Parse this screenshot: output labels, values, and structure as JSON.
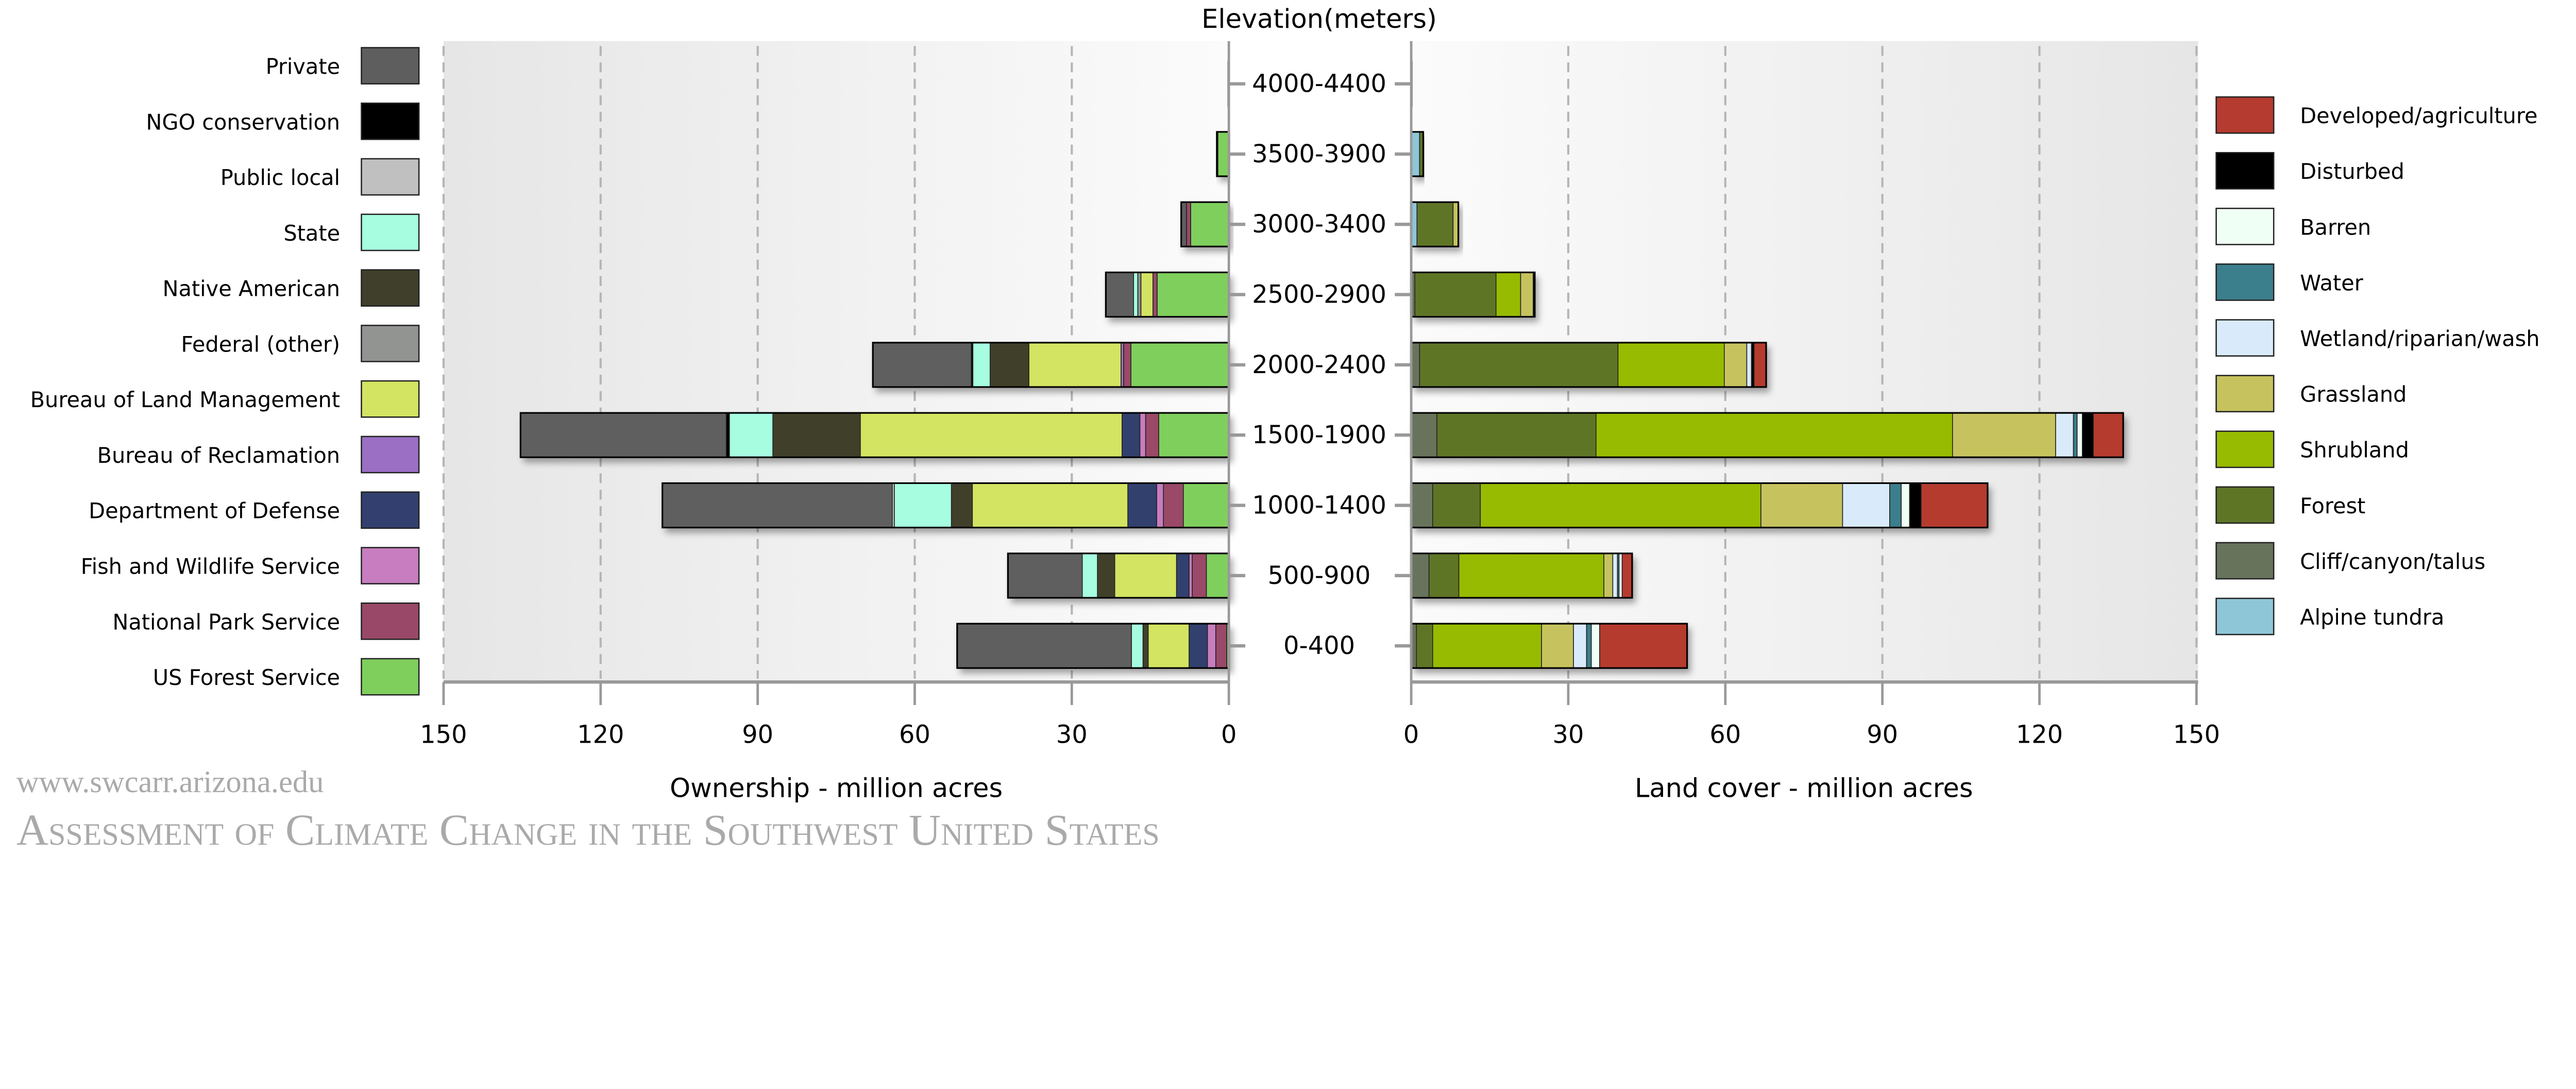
{
  "chart_data": [
    {
      "type": "bar",
      "orientation": "horizontal-stacked",
      "direction": "leftward",
      "xlabel": "Ownership - million acres",
      "xlim": [
        0,
        150
      ],
      "xticks": [
        "150",
        "120",
        "90",
        "60",
        "30",
        "0"
      ],
      "grid": true,
      "legend_placement": "left",
      "categories": [
        "4000-4400",
        "3500-3900",
        "3000-3400",
        "2500-2900",
        "2000-2400",
        "1500-1900",
        "1000-1400",
        "500-900",
        "0-400"
      ],
      "series": [
        {
          "name": "US Forest Service",
          "color": "#7fcf5d",
          "values": [
            0.1,
            2.1,
            7.3,
            13.7,
            18.7,
            13.4,
            8.7,
            4.3,
            0.4
          ]
        },
        {
          "name": "National Park Service",
          "color": "#9a4868",
          "values": [
            0,
            0.1,
            0.8,
            0.8,
            1.4,
            2.5,
            3.8,
            2.7,
            2.1
          ]
        },
        {
          "name": "Fish and Wildlife Service",
          "color": "#c77dbf",
          "values": [
            0,
            0,
            0,
            0,
            0,
            1.1,
            1.3,
            0.6,
            1.6
          ]
        },
        {
          "name": "Department of Defense",
          "color": "#333f6e",
          "values": [
            0,
            0,
            0,
            0,
            0,
            3.4,
            5.5,
            2.4,
            3.5
          ]
        },
        {
          "name": "Bureau of Reclamation",
          "color": "#9b6fc4",
          "values": [
            0,
            0,
            0,
            0,
            0.5,
            0,
            0,
            0,
            0
          ]
        },
        {
          "name": "Bureau of Land Management",
          "color": "#d3e462",
          "values": [
            0,
            0,
            0,
            2.3,
            17.6,
            50.0,
            29.7,
            11.8,
            7.8
          ]
        },
        {
          "name": "Federal (other)",
          "color": "#929492",
          "values": [
            0,
            0,
            0,
            0.6,
            0,
            0,
            0,
            0,
            0
          ]
        },
        {
          "name": "Native American",
          "color": "#3f3f2b",
          "values": [
            0,
            0,
            0,
            0,
            7.4,
            16.7,
            4.0,
            3.3,
            1.0
          ]
        },
        {
          "name": "State",
          "color": "#a6fde0",
          "values": [
            0,
            0,
            0,
            0.8,
            3.3,
            8.3,
            10.9,
            2.9,
            2.2
          ]
        },
        {
          "name": "Public local",
          "color": "#c0c0c0",
          "values": [
            0,
            0,
            0,
            0,
            0,
            0,
            0.4,
            0,
            0
          ]
        },
        {
          "name": "NGO conservation",
          "color": "#000000",
          "values": [
            0,
            0,
            0,
            0,
            0.3,
            0.6,
            0,
            0,
            0
          ]
        },
        {
          "name": "Private",
          "color": "#5e5e5e",
          "values": [
            0,
            0.1,
            1.0,
            5.3,
            18.8,
            39.3,
            43.9,
            14.2,
            33.3
          ]
        }
      ]
    },
    {
      "type": "bar",
      "orientation": "horizontal-stacked",
      "direction": "rightward",
      "xlabel": "Land cover - million acres",
      "xlim": [
        0,
        150
      ],
      "xticks": [
        "0",
        "30",
        "60",
        "90",
        "120",
        "150"
      ],
      "grid": true,
      "legend_placement": "right",
      "categories": [
        "4000-4400",
        "3500-3900",
        "3000-3400",
        "2500-2900",
        "2000-2400",
        "1500-1900",
        "1000-1400",
        "500-900",
        "0-400"
      ],
      "series": [
        {
          "name": "Alpine tundra",
          "color": "#8ec6d8",
          "values": [
            0.1,
            1.6,
            1.1,
            0,
            0,
            0,
            0,
            0,
            0
          ]
        },
        {
          "name": "Cliff/canyon/talus",
          "color": "#68735c",
          "values": [
            0,
            0,
            0,
            0.7,
            1.6,
            4.9,
            4.1,
            3.4,
            1.0
          ]
        },
        {
          "name": "Forest",
          "color": "#5f7526",
          "values": [
            0,
            0.7,
            6.9,
            15.5,
            37.9,
            30.4,
            9.1,
            5.7,
            3.1
          ]
        },
        {
          "name": "Shrubland",
          "color": "#97bb00",
          "values": [
            0,
            0,
            0,
            4.7,
            20.3,
            68.1,
            53.6,
            27.7,
            20.8
          ]
        },
        {
          "name": "Grassland",
          "color": "#c6c35e",
          "values": [
            0,
            0,
            1.0,
            2.4,
            4.3,
            19.7,
            15.6,
            1.7,
            6.1
          ]
        },
        {
          "name": "Wetland/riparian/wash",
          "color": "#d9ebfb",
          "values": [
            0,
            0,
            0,
            0,
            0.9,
            3.4,
            9.0,
            0.9,
            2.5
          ]
        },
        {
          "name": "Water",
          "color": "#3b7e8c",
          "values": [
            0,
            0,
            0,
            0,
            0,
            0.7,
            2.2,
            0.3,
            0.9
          ]
        },
        {
          "name": "Barren",
          "color": "#f0fff5",
          "values": [
            0,
            0,
            0,
            0,
            0,
            1.0,
            1.6,
            0.6,
            1.6
          ]
        },
        {
          "name": "Disturbed",
          "color": "#000000",
          "values": [
            0,
            0,
            0,
            0.3,
            0.5,
            2.1,
            2.2,
            0,
            0
          ]
        },
        {
          "name": "Developed/agriculture",
          "color": "#b53a2f",
          "values": [
            0,
            0,
            0,
            0,
            2.3,
            5.7,
            12.7,
            1.9,
            16.7
          ]
        }
      ]
    }
  ],
  "center_axis_title": "Elevation(meters)",
  "watermark": {
    "title": "Assessment of Climate Change in the Southwest United States",
    "url": "www.swcarr.arizona.edu"
  }
}
